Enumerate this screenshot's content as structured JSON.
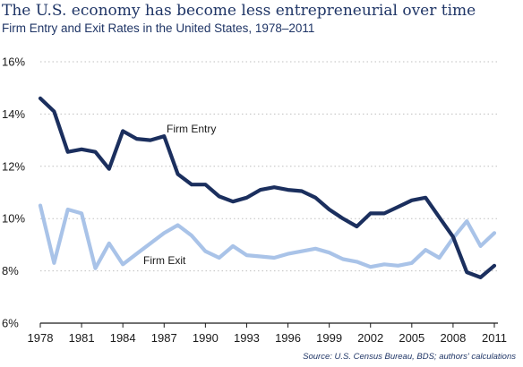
{
  "title": "The U.S. economy has become less entrepreneurial over time",
  "subtitle": "Firm Entry and Exit Rates in the United States, 1978–2011",
  "source": "Source: U.S. Census Bureau, BDS; authors' calculations",
  "colors": {
    "entry": "#1b2f5e",
    "exit": "#a9c3e8",
    "grid": "#bfbfbf",
    "title": "#1f3566"
  },
  "chart_data": {
    "type": "line",
    "x": [
      1978,
      1979,
      1980,
      1981,
      1982,
      1983,
      1984,
      1985,
      1986,
      1987,
      1988,
      1989,
      1990,
      1991,
      1992,
      1993,
      1994,
      1995,
      1996,
      1997,
      1998,
      1999,
      2000,
      2001,
      2002,
      2003,
      2004,
      2005,
      2006,
      2007,
      2008,
      2009,
      2010,
      2011
    ],
    "series": [
      {
        "name": "Firm Entry",
        "color": "#1b2f5e",
        "values": [
          14.6,
          14.1,
          12.55,
          12.65,
          12.55,
          11.9,
          13.35,
          13.05,
          13.0,
          13.15,
          11.7,
          11.3,
          11.3,
          10.85,
          10.65,
          10.8,
          11.1,
          11.2,
          11.1,
          11.05,
          10.8,
          10.35,
          10.0,
          9.7,
          10.2,
          10.2,
          10.45,
          10.7,
          10.8,
          10.05,
          9.3,
          7.95,
          7.75,
          8.2
        ]
      },
      {
        "name": "Firm Exit",
        "color": "#a9c3e8",
        "values": [
          10.5,
          8.3,
          10.35,
          10.2,
          8.1,
          9.05,
          8.25,
          8.65,
          9.05,
          9.45,
          9.75,
          9.35,
          8.75,
          8.5,
          8.95,
          8.6,
          8.55,
          8.5,
          8.65,
          8.75,
          8.85,
          8.7,
          8.45,
          8.35,
          8.15,
          8.25,
          8.2,
          8.3,
          8.8,
          8.5,
          9.25,
          9.9,
          8.95,
          9.45
        ]
      }
    ],
    "xticks": [
      1978,
      1981,
      1984,
      1987,
      1990,
      1993,
      1996,
      1999,
      2002,
      2005,
      2008,
      2011
    ],
    "yticks": [
      6,
      8,
      10,
      12,
      14,
      16
    ],
    "ytick_labels": [
      "6%",
      "8%",
      "10%",
      "12%",
      "14%",
      "16%"
    ],
    "ylim": [
      6,
      16
    ],
    "xlim": [
      1978,
      2011
    ],
    "grid": "horizontal dotted"
  }
}
